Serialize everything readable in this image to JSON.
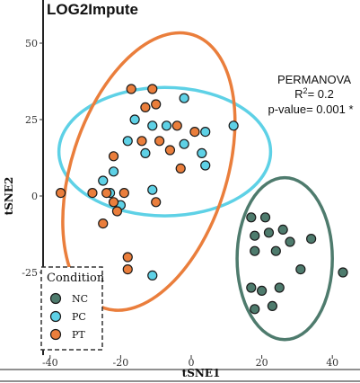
{
  "chart_data": {
    "type": "scatter",
    "title": "LOG2Impute",
    "xlabel": "tSNE1",
    "ylabel": "tSNE2",
    "xlim": [
      -42,
      46
    ],
    "ylim": [
      -51,
      56
    ],
    "xticks": [
      -40,
      -20,
      0,
      20,
      40
    ],
    "yticks": [
      -25,
      0,
      25,
      50
    ],
    "legend": {
      "title": "Condition",
      "placement": "bottom-left"
    },
    "annotation": {
      "line1": "PERMANOVA",
      "r2_prefix": "R",
      "r2_sup": "2",
      "r2_suffix": "= 0.2",
      "pvalue": "p-value= 0.001 *"
    },
    "series": [
      {
        "name": "NC",
        "color": "#4e7b6d",
        "points": [
          [
            17,
            -7
          ],
          [
            21,
            -7
          ],
          [
            18,
            -13
          ],
          [
            22,
            -12
          ],
          [
            26,
            -11
          ],
          [
            28,
            -15
          ],
          [
            34,
            -14
          ],
          [
            18,
            -18
          ],
          [
            24,
            -18
          ],
          [
            31,
            -24
          ],
          [
            43,
            -25
          ],
          [
            17,
            -30
          ],
          [
            25,
            -30
          ],
          [
            20,
            -31
          ],
          [
            23,
            -36
          ],
          [
            18,
            -37
          ]
        ]
      },
      {
        "name": "PC",
        "color": "#5ed1e6",
        "points": [
          [
            -2,
            32
          ],
          [
            12,
            23
          ],
          [
            -16,
            25
          ],
          [
            4,
            21
          ],
          [
            -11,
            23
          ],
          [
            -7,
            23
          ],
          [
            -18,
            18
          ],
          [
            -13,
            14
          ],
          [
            -2,
            17
          ],
          [
            3,
            14
          ],
          [
            -22,
            8
          ],
          [
            -25,
            5
          ],
          [
            4,
            10
          ],
          [
            -23,
            1
          ],
          [
            -20,
            -3
          ],
          [
            -11,
            2
          ],
          [
            -11,
            -26
          ]
        ]
      },
      {
        "name": "PT",
        "color": "#ea7e3c",
        "points": [
          [
            -17,
            35
          ],
          [
            -11,
            35
          ],
          [
            -13,
            29
          ],
          [
            -10,
            30
          ],
          [
            -22,
            13
          ],
          [
            -4,
            23
          ],
          [
            -14,
            18
          ],
          [
            -9,
            18
          ],
          [
            1,
            21
          ],
          [
            -6,
            15
          ],
          [
            -3,
            9
          ],
          [
            -28,
            1
          ],
          [
            -37,
            1
          ],
          [
            -19,
            1
          ],
          [
            -24,
            1
          ],
          [
            -10,
            -2
          ],
          [
            -22,
            -2
          ],
          [
            -25,
            -9
          ],
          [
            -21,
            -5
          ],
          [
            -18,
            -20
          ],
          [
            -18,
            -24
          ]
        ]
      }
    ],
    "ellipses": [
      {
        "series": "NC",
        "cx": 26.5,
        "cy": -20.5,
        "rx": 13.5,
        "ry": 26.5,
        "rotation": 0
      },
      {
        "series": "PC",
        "cx": -7.5,
        "cy": 14.5,
        "rx": 30,
        "ry": 21,
        "rotation": 0
      },
      {
        "series": "PT",
        "cx": -12,
        "cy": 8,
        "rx": 22,
        "ry": 47,
        "rotation": 18
      }
    ]
  }
}
